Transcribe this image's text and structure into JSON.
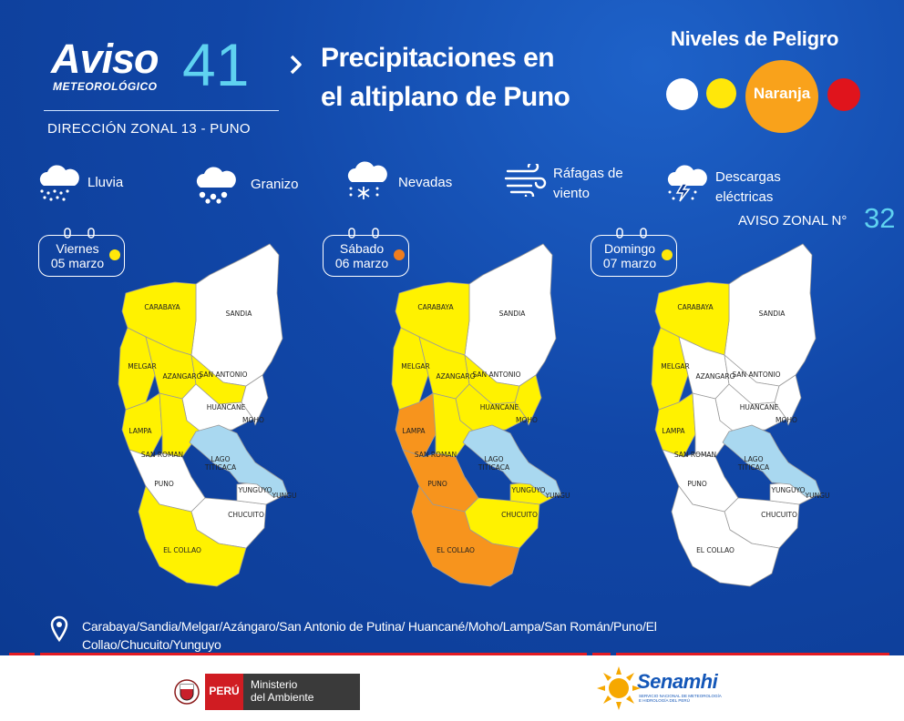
{
  "header": {
    "aviso_word": "Aviso",
    "aviso_sub": "METEOROLÓGICO",
    "aviso_number": "41",
    "zona": "DIRECCIÓN ZONAL 13 - PUNO",
    "title_line1": "Precipitaciones en",
    "title_line2": "el altiplano de Puno"
  },
  "niveles": {
    "title": "Niveles de Peligro",
    "active_label": "Naranja",
    "colors": {
      "white": "#ffffff",
      "yellow": "#ffe70a",
      "orange": "#f9a21b",
      "red": "#e0141c"
    }
  },
  "phenomena": [
    {
      "icon": "rain-cloud-icon",
      "label": "Lluvia"
    },
    {
      "icon": "hail-cloud-icon",
      "label": "Granizo"
    },
    {
      "icon": "snow-cloud-icon",
      "label": "Nevadas"
    },
    {
      "icon": "wind-gust-icon",
      "label": "Ráfagas de viento"
    },
    {
      "icon": "thunder-cloud-icon",
      "label": "Descargas eléctricas"
    }
  ],
  "zonal": {
    "label": "AVISO ZONAL N°",
    "number": "32"
  },
  "days": [
    {
      "day": "Viernes",
      "date": "05 marzo",
      "level_color": "#ffe70a"
    },
    {
      "day": "Sábado",
      "date": "06 marzo",
      "level_color": "#f07d1e"
    },
    {
      "day": "Domingo",
      "date": "07 marzo",
      "level_color": "#ffe70a"
    }
  ],
  "map_labels": {
    "carabaya": "CARABAYA",
    "sandia": "SANDIA",
    "melgar": "MELGAR",
    "azangaro": "AZANGARO",
    "san_antonio": "SAN ANTONIO",
    "huancane": "HUANCANE",
    "moho": "MOHO",
    "lampa": "LAMPA",
    "san_roman": "SAN ROMAN",
    "lago": "LAGO TITICACA",
    "puno": "PUNO",
    "yunguyo": "YUNGUYO",
    "yungu": "YUNGU",
    "chucuito": "CHUCUITO",
    "el_collao": "EL COLLAO"
  },
  "map_colors": {
    "none": "#ffffff",
    "yellow": "#fff200",
    "orange": "#f7941d",
    "lake": "#a9d8f0",
    "border": "#9a9a9a"
  },
  "map_levels": [
    {
      "carabaya": "yellow",
      "sandia": "none",
      "melgar": "yellow",
      "azangaro": "yellow",
      "san_antonio": "yellow",
      "huancane": "none",
      "moho": "none",
      "lampa": "yellow",
      "san_roman": "yellow",
      "puno": "none",
      "chucuito": "none",
      "yunguyo": "none",
      "el_collao": "yellow"
    },
    {
      "carabaya": "yellow",
      "sandia": "none",
      "melgar": "yellow",
      "azangaro": "yellow",
      "san_antonio": "yellow",
      "huancane": "yellow",
      "moho": "yellow",
      "lampa": "orange",
      "san_roman": "yellow",
      "puno": "orange",
      "chucuito": "yellow",
      "yunguyo": "yellow",
      "el_collao": "orange"
    },
    {
      "carabaya": "yellow",
      "sandia": "none",
      "melgar": "yellow",
      "azangaro": "none",
      "san_antonio": "none",
      "huancane": "none",
      "moho": "none",
      "lampa": "yellow",
      "san_roman": "none",
      "puno": "none",
      "chucuito": "none",
      "yunguyo": "none",
      "el_collao": "none"
    }
  ],
  "locations": "Carabaya/Sandia/Melgar/Azángaro/San Antonio de Putina/ Huancané/Moho/Lampa/San Román/Puno/El Collao/Chucuito/Yunguyo",
  "footer": {
    "peru_label": "PERÚ",
    "ministerio_line1": "Ministerio",
    "ministerio_line2": "del Ambiente",
    "senamhi_name": "Senamhi",
    "senamhi_sub1": "SERVICIO NACIONAL DE METEOROLOGÍA",
    "senamhi_sub2": "E HIDROLOGÍA DEL PERÚ"
  }
}
